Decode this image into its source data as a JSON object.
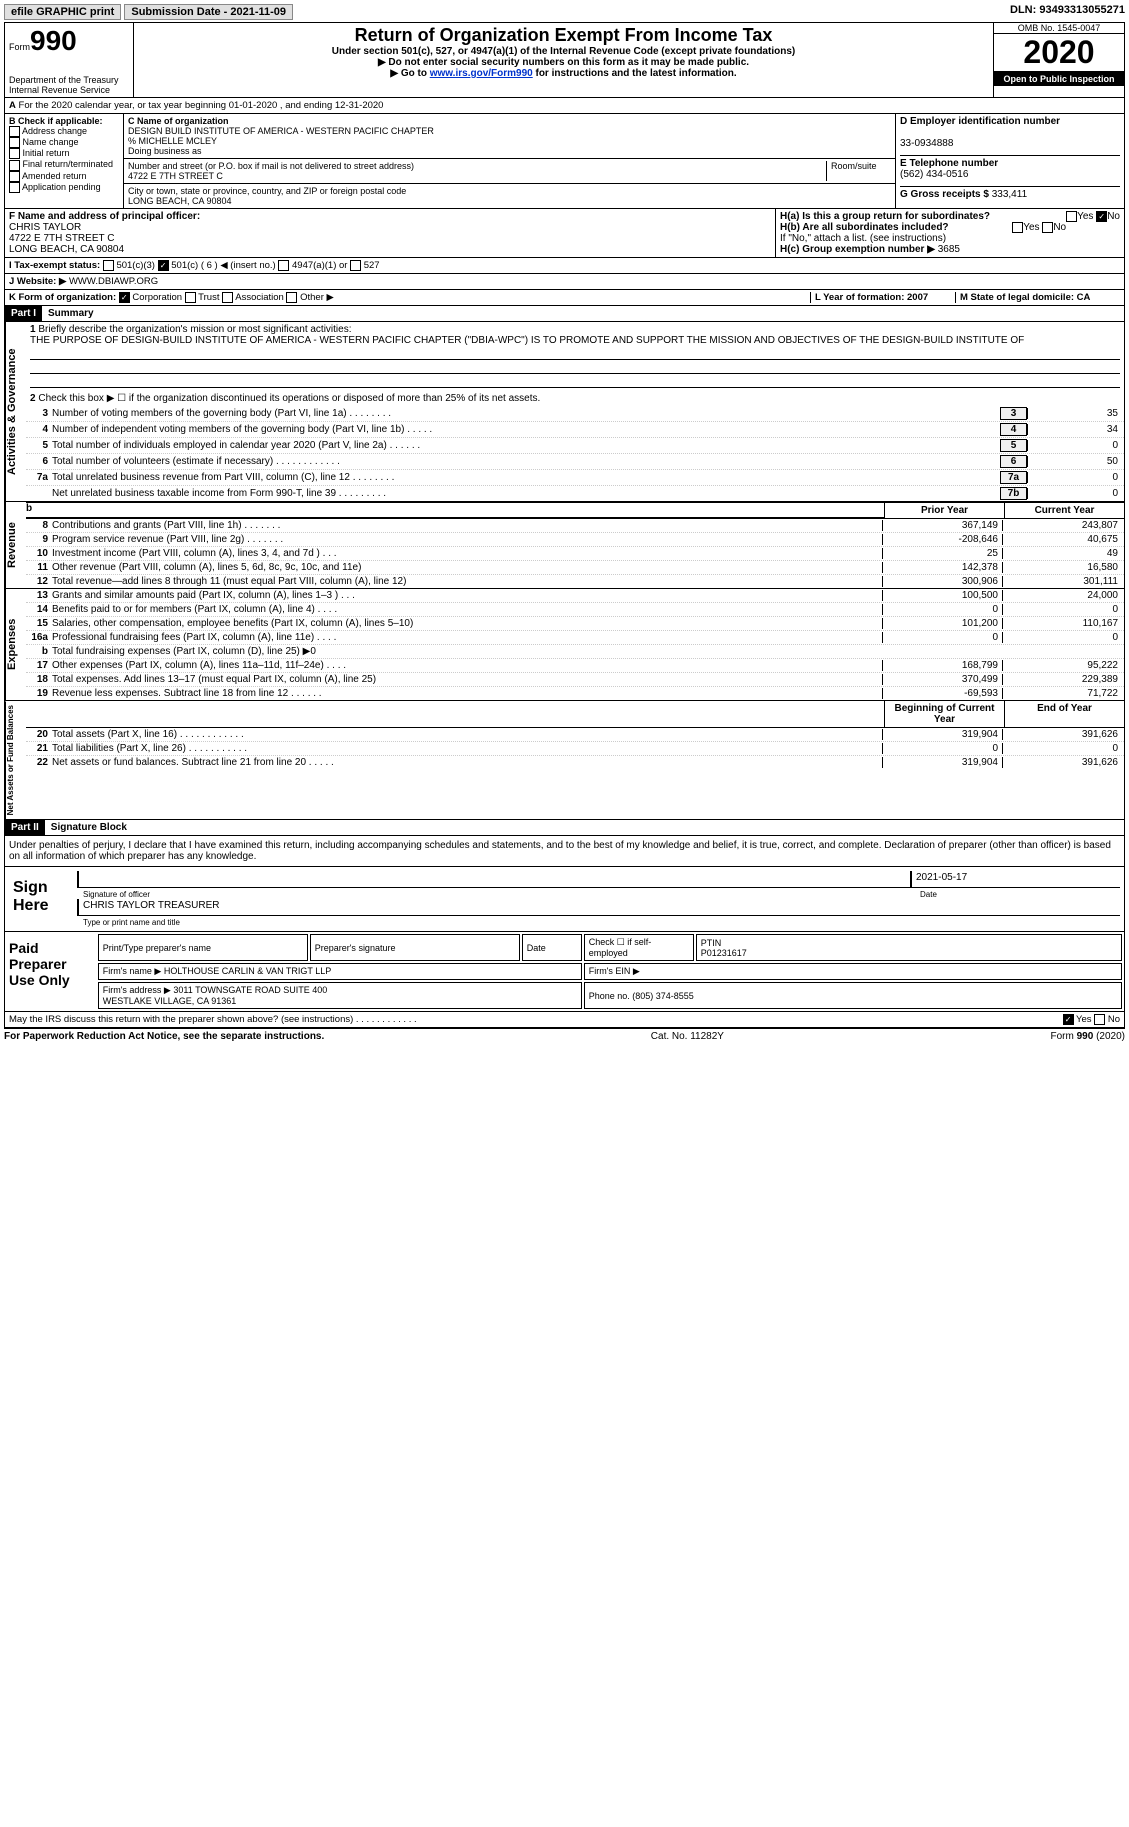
{
  "top": {
    "efile": "efile GRAPHIC print",
    "sub_label": "Submission Date - 2021-11-09",
    "dln": "DLN: 93493313055271"
  },
  "header": {
    "form": "Form",
    "num": "990",
    "dept": "Department of the Treasury\nInternal Revenue Service",
    "title": "Return of Organization Exempt From Income Tax",
    "subtitle": "Under section 501(c), 527, or 4947(a)(1) of the Internal Revenue Code (except private foundations)",
    "note1": "▶ Do not enter social security numbers on this form as it may be made public.",
    "note2": "▶ Go to ",
    "link": "www.irs.gov/Form990",
    "note2b": " for instructions and the latest information.",
    "omb": "OMB No. 1545-0047",
    "year": "2020",
    "open": "Open to Public Inspection"
  },
  "lineA": "For the 2020 calendar year, or tax year beginning 01-01-2020    , and ending 12-31-2020",
  "boxB": {
    "title": "B Check if applicable:",
    "items": [
      "Address change",
      "Name change",
      "Initial return",
      "Final return/terminated",
      "Amended return",
      "Application pending"
    ]
  },
  "boxC": {
    "label": "C Name of organization",
    "name": "DESIGN BUILD INSTITUTE OF AMERICA - WESTERN PACIFIC CHAPTER\n% MICHELLE MCLEY",
    "dba_label": "Doing business as",
    "addr_label": "Number and street (or P.O. box if mail is not delivered to street address)",
    "room_label": "Room/suite",
    "addr": "4722 E 7TH STREET C",
    "city_label": "City or town, state or province, country, and ZIP or foreign postal code",
    "city": "LONG BEACH, CA  90804"
  },
  "boxD": {
    "label": "D Employer identification number",
    "val": "33-0934888"
  },
  "boxE": {
    "label": "E Telephone number",
    "val": "(562) 434-0516"
  },
  "boxG": {
    "label": "G Gross receipts $",
    "val": "333,411"
  },
  "boxF": {
    "label": "F Name and address of principal officer:",
    "name": "CHRIS TAYLOR",
    "addr": "4722 E 7TH STREET C\nLONG BEACH, CA  90804"
  },
  "boxH": {
    "a": "H(a)  Is this a group return for subordinates?",
    "b": "H(b)  Are all subordinates included?",
    "note": "If \"No,\" attach a list. (see instructions)",
    "c": "H(c)  Group exemption number ▶",
    "c_val": "3685"
  },
  "lineI": {
    "label": "I   Tax-exempt status:",
    "opts": [
      "501(c)(3)",
      "501(c) ( 6 ) ◀ (insert no.)",
      "4947(a)(1) or",
      "527"
    ]
  },
  "lineJ": {
    "label": "J   Website: ▶",
    "val": "WWW.DBIAWP.ORG"
  },
  "lineK": {
    "label": "K Form of organization:",
    "opts": [
      "Corporation",
      "Trust",
      "Association",
      "Other ▶"
    ]
  },
  "lineL": {
    "label": "L Year of formation: 2007"
  },
  "lineM": {
    "label": "M State of legal domicile: CA"
  },
  "part1": {
    "header": "Part I",
    "title": "Summary",
    "q1": "Briefly describe the organization's mission or most significant activities:",
    "mission": "THE PURPOSE OF DESIGN-BUILD INSTITUTE OF AMERICA - WESTERN PACIFIC CHAPTER (\"DBIA-WPC\") IS TO PROMOTE AND SUPPORT THE MISSION AND OBJECTIVES OF THE DESIGN-BUILD INSTITUTE OF",
    "q2": "Check this box ▶ ☐  if the organization discontinued its operations or disposed of more than 25% of its net assets.",
    "gov_label": "Activities & Governance",
    "rev_label": "Revenue",
    "exp_label": "Expenses",
    "net_label": "Net Assets or Fund Balances",
    "lines_gov": [
      {
        "n": "3",
        "t": "Number of voting members of the governing body (Part VI, line 1a)  .   .   .   .   .   .   .   .",
        "box": "3",
        "v": "35"
      },
      {
        "n": "4",
        "t": "Number of independent voting members of the governing body (Part VI, line 1b)   .   .   .   .   .",
        "box": "4",
        "v": "34"
      },
      {
        "n": "5",
        "t": "Total number of individuals employed in calendar year 2020 (Part V, line 2a)   .   .   .   .   .   .",
        "box": "5",
        "v": "0"
      },
      {
        "n": "6",
        "t": "Total number of volunteers (estimate if necessary)   .   .   .   .   .   .   .   .   .   .   .   .",
        "box": "6",
        "v": "50"
      },
      {
        "n": "7a",
        "t": "Total unrelated business revenue from Part VIII, column (C), line 12   .   .   .   .   .   .   .   .",
        "box": "7a",
        "v": "0"
      },
      {
        "n": "",
        "t": "Net unrelated business taxable income from Form 990-T, line 39   .   .   .   .   .   .   .   .   .",
        "box": "7b",
        "v": "0"
      }
    ],
    "col_prior": "Prior Year",
    "col_current": "Current Year",
    "col_begin": "Beginning of Current Year",
    "col_end": "End of Year",
    "lines_rev": [
      {
        "n": "8",
        "t": "Contributions and grants (Part VIII, line 1h)   .   .   .   .   .   .   .",
        "p": "367,149",
        "c": "243,807"
      },
      {
        "n": "9",
        "t": "Program service revenue (Part VIII, line 2g)   .   .   .   .   .   .   .",
        "p": "-208,646",
        "c": "40,675"
      },
      {
        "n": "10",
        "t": "Investment income (Part VIII, column (A), lines 3, 4, and 7d )   .   .   .",
        "p": "25",
        "c": "49"
      },
      {
        "n": "11",
        "t": "Other revenue (Part VIII, column (A), lines 5, 6d, 8c, 9c, 10c, and 11e)",
        "p": "142,378",
        "c": "16,580"
      },
      {
        "n": "12",
        "t": "Total revenue—add lines 8 through 11 (must equal Part VIII, column (A), line 12)",
        "p": "300,906",
        "c": "301,111"
      }
    ],
    "lines_exp": [
      {
        "n": "13",
        "t": "Grants and similar amounts paid (Part IX, column (A), lines 1–3 )   .   .   .",
        "p": "100,500",
        "c": "24,000"
      },
      {
        "n": "14",
        "t": "Benefits paid to or for members (Part IX, column (A), line 4)   .   .   .   .",
        "p": "0",
        "c": "0"
      },
      {
        "n": "15",
        "t": "Salaries, other compensation, employee benefits (Part IX, column (A), lines 5–10)",
        "p": "101,200",
        "c": "110,167"
      },
      {
        "n": "16a",
        "t": "Professional fundraising fees (Part IX, column (A), line 11e)   .   .   .   .",
        "p": "0",
        "c": "0"
      },
      {
        "n": "b",
        "t": "Total fundraising expenses (Part IX, column (D), line 25) ▶0",
        "p": "",
        "c": "",
        "shaded": true
      },
      {
        "n": "17",
        "t": "Other expenses (Part IX, column (A), lines 11a–11d, 11f–24e)   .   .   .   .",
        "p": "168,799",
        "c": "95,222"
      },
      {
        "n": "18",
        "t": "Total expenses. Add lines 13–17 (must equal Part IX, column (A), line 25)",
        "p": "370,499",
        "c": "229,389"
      },
      {
        "n": "19",
        "t": "Revenue less expenses. Subtract line 18 from line 12   .   .   .   .   .   .",
        "p": "-69,593",
        "c": "71,722"
      }
    ],
    "lines_net": [
      {
        "n": "20",
        "t": "Total assets (Part X, line 16)   .   .   .   .   .   .   .   .   .   .   .   .",
        "p": "319,904",
        "c": "391,626"
      },
      {
        "n": "21",
        "t": "Total liabilities (Part X, line 26)   .   .   .   .   .   .   .   .   .   .   .",
        "p": "0",
        "c": "0"
      },
      {
        "n": "22",
        "t": "Net assets or fund balances. Subtract line 21 from line 20   .   .   .   .   .",
        "p": "319,904",
        "c": "391,626"
      }
    ]
  },
  "part2": {
    "header": "Part II",
    "title": "Signature Block",
    "decl": "Under penalties of perjury, I declare that I have examined this return, including accompanying schedules and statements, and to the best of my knowledge and belief, it is true, correct, and complete. Declaration of preparer (other than officer) is based on all information of which preparer has any knowledge.",
    "sign_here": "Sign Here",
    "sig_officer": "Signature of officer",
    "sig_date": "2021-05-17",
    "date_label": "Date",
    "officer_name": "CHRIS TAYLOR TREASURER",
    "name_label": "Type or print name and title",
    "paid_label": "Paid Preparer Use Only",
    "prep_name_label": "Print/Type preparer's name",
    "prep_sig_label": "Preparer's signature",
    "check_label": "Check ☐ if self-employed",
    "ptin_label": "PTIN",
    "ptin": "P01231617",
    "firm_name_label": "Firm's name    ▶",
    "firm_name": "HOLTHOUSE CARLIN & VAN TRIGT LLP",
    "firm_ein_label": "Firm's EIN ▶",
    "firm_addr_label": "Firm's address ▶",
    "firm_addr": "3011 TOWNSGATE ROAD SUITE 400\nWESTLAKE VILLAGE, CA  91361",
    "phone_label": "Phone no.",
    "phone": "(805) 374-8555",
    "discuss": "May the IRS discuss this return with the preparer shown above? (see instructions)   .   .   .   .   .   .   .   .   .   .   .   ."
  },
  "footer": {
    "left": "For Paperwork Reduction Act Notice, see the separate instructions.",
    "mid": "Cat. No. 11282Y",
    "right": "Form 990 (2020)"
  }
}
